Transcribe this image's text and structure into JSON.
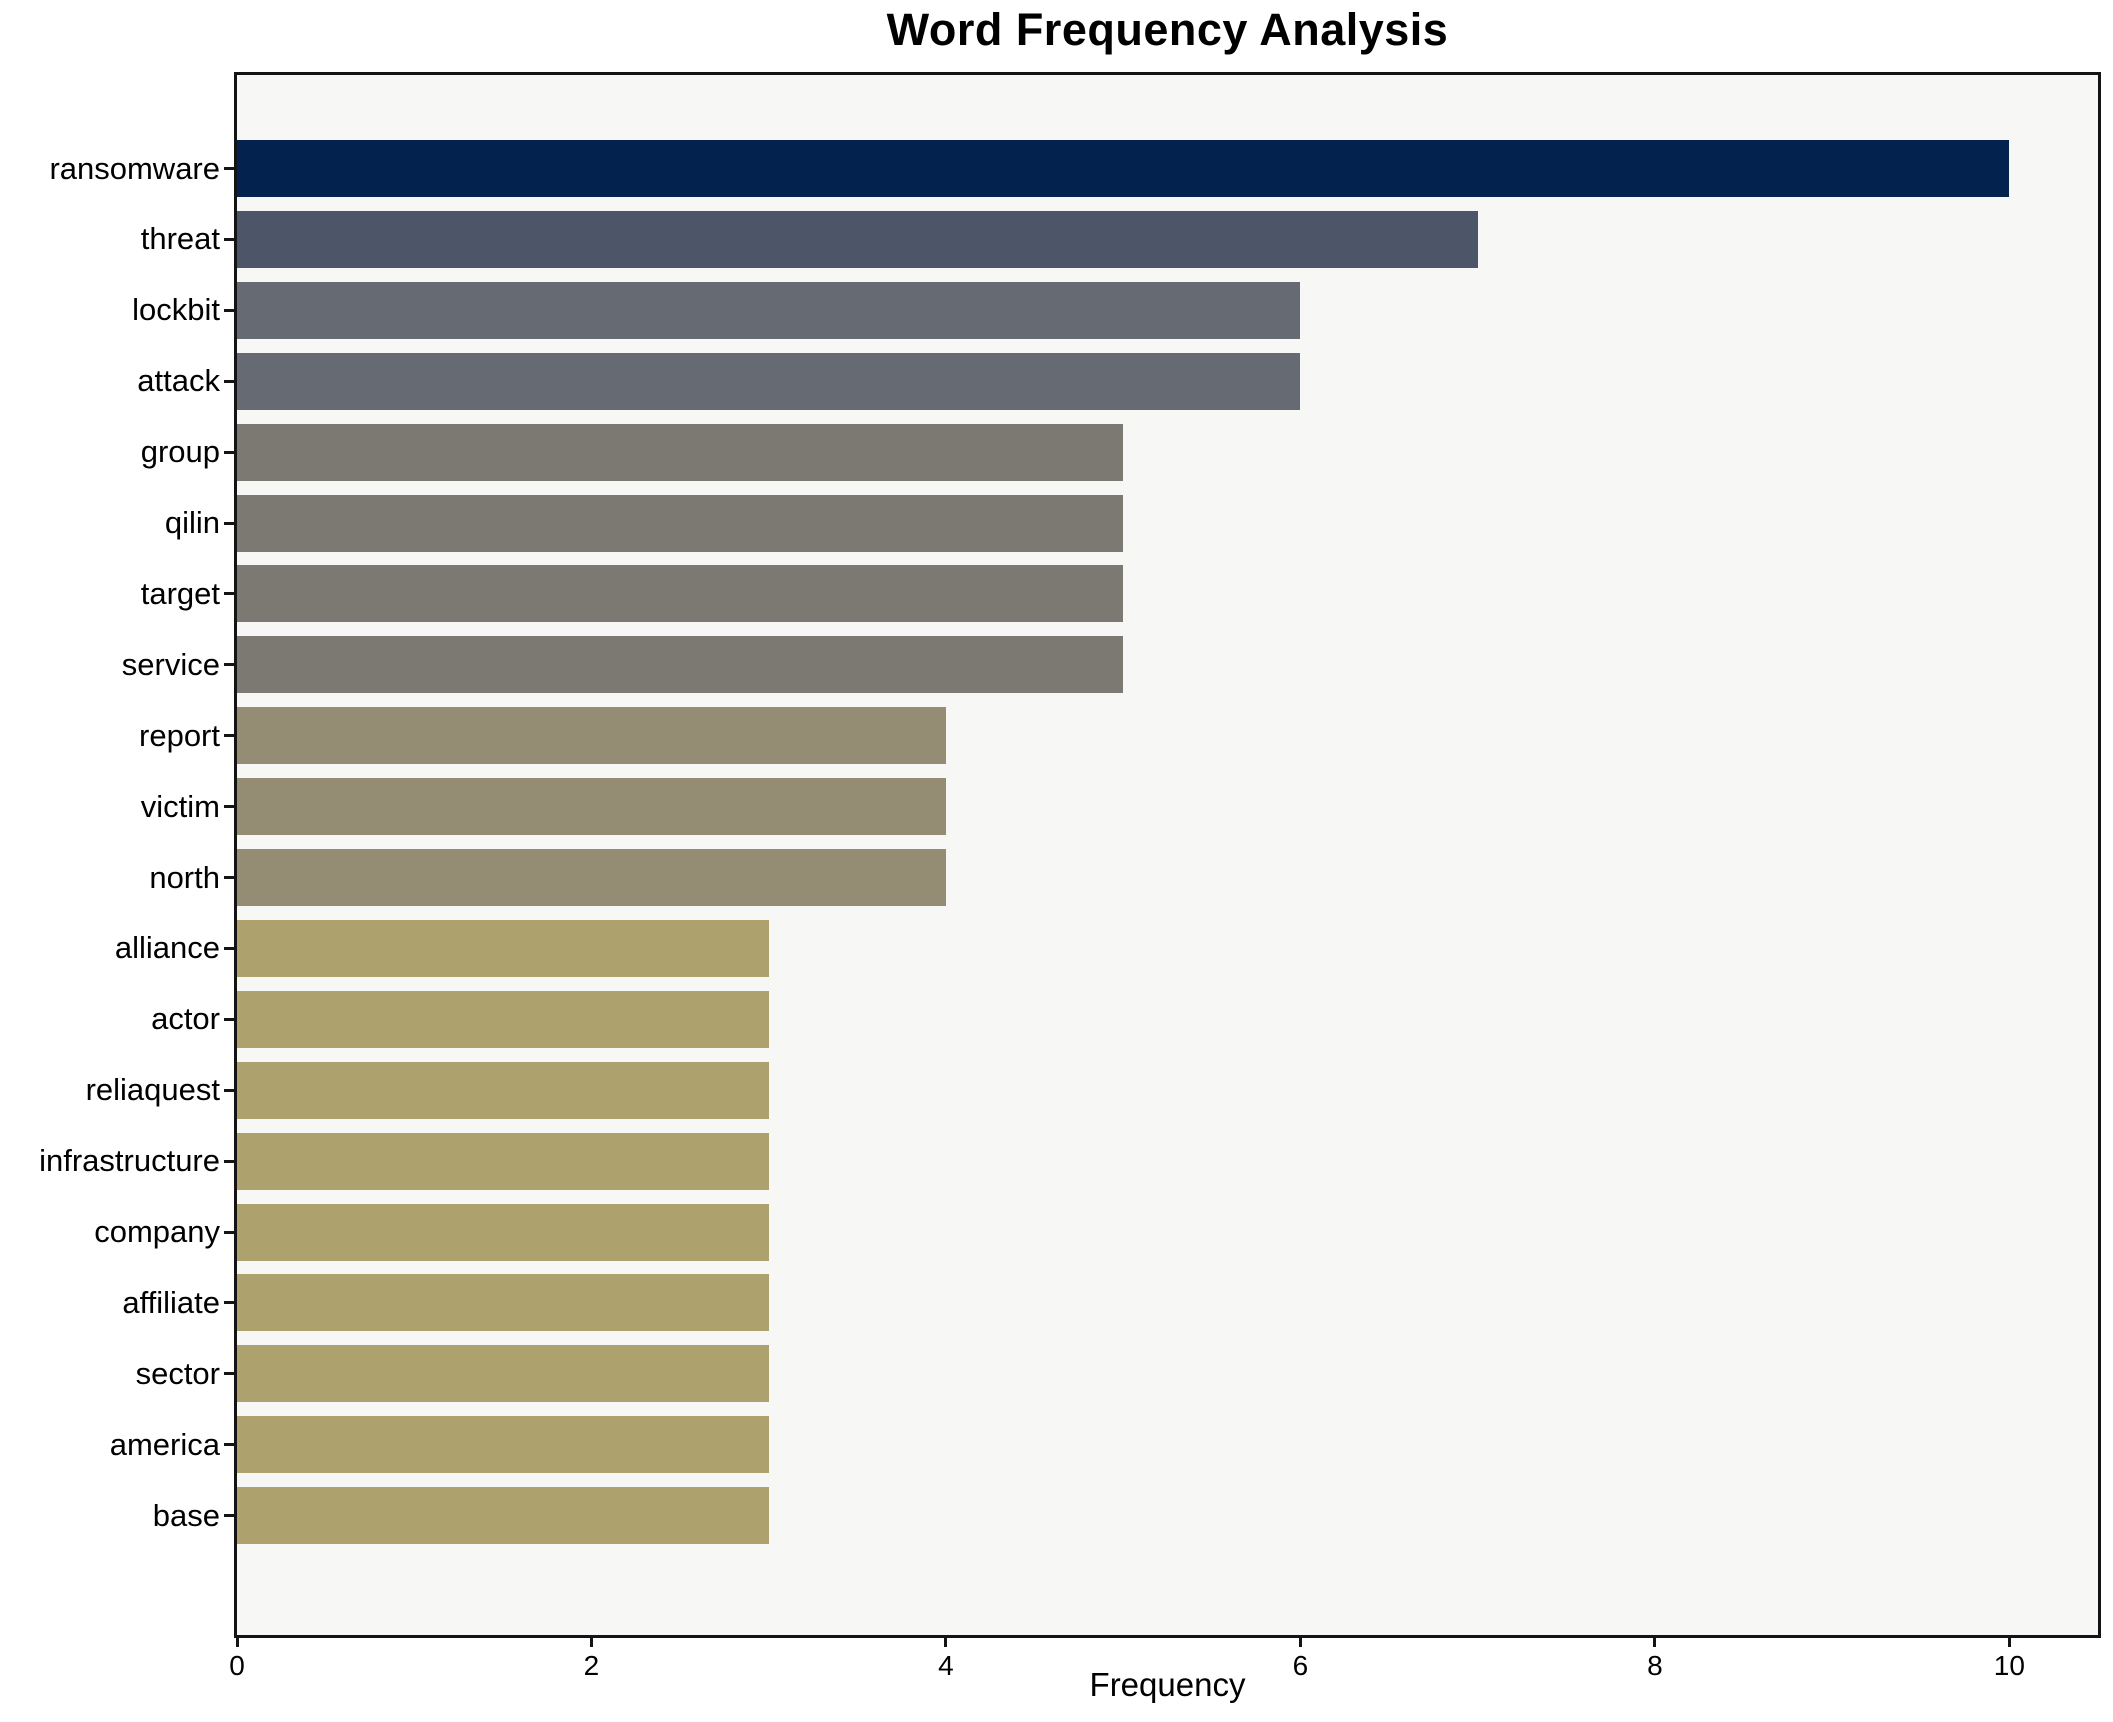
{
  "chart_data": {
    "type": "bar",
    "orientation": "horizontal",
    "title": "Word Frequency Analysis",
    "xlabel": "Frequency",
    "ylabel": "",
    "categories": [
      "ransomware",
      "threat",
      "lockbit",
      "attack",
      "group",
      "qilin",
      "target",
      "service",
      "report",
      "victim",
      "north",
      "alliance",
      "actor",
      "reliaquest",
      "infrastructure",
      "company",
      "affiliate",
      "sector",
      "america",
      "base"
    ],
    "values": [
      10,
      7,
      6,
      6,
      5,
      5,
      5,
      5,
      4,
      4,
      4,
      3,
      3,
      3,
      3,
      3,
      3,
      3,
      3,
      3
    ],
    "bar_colors": [
      "#03224e",
      "#4d5669",
      "#666a73",
      "#666a73",
      "#7b7971",
      "#7b7971",
      "#7b7971",
      "#7b7971",
      "#948d74",
      "#948d74",
      "#948d74",
      "#ada26e",
      "#ada26e",
      "#ada26e",
      "#ada26e",
      "#ada26e",
      "#ada26e",
      "#ada26e",
      "#ada26e",
      "#ada26e"
    ],
    "x_ticks": [
      0,
      2,
      4,
      6,
      8,
      10
    ],
    "xlim": [
      0,
      10.5
    ],
    "grid": false,
    "legend": null,
    "plot_background": "#f7f7f6",
    "figure_background": "#ffffff",
    "spine_color": "#141414"
  }
}
